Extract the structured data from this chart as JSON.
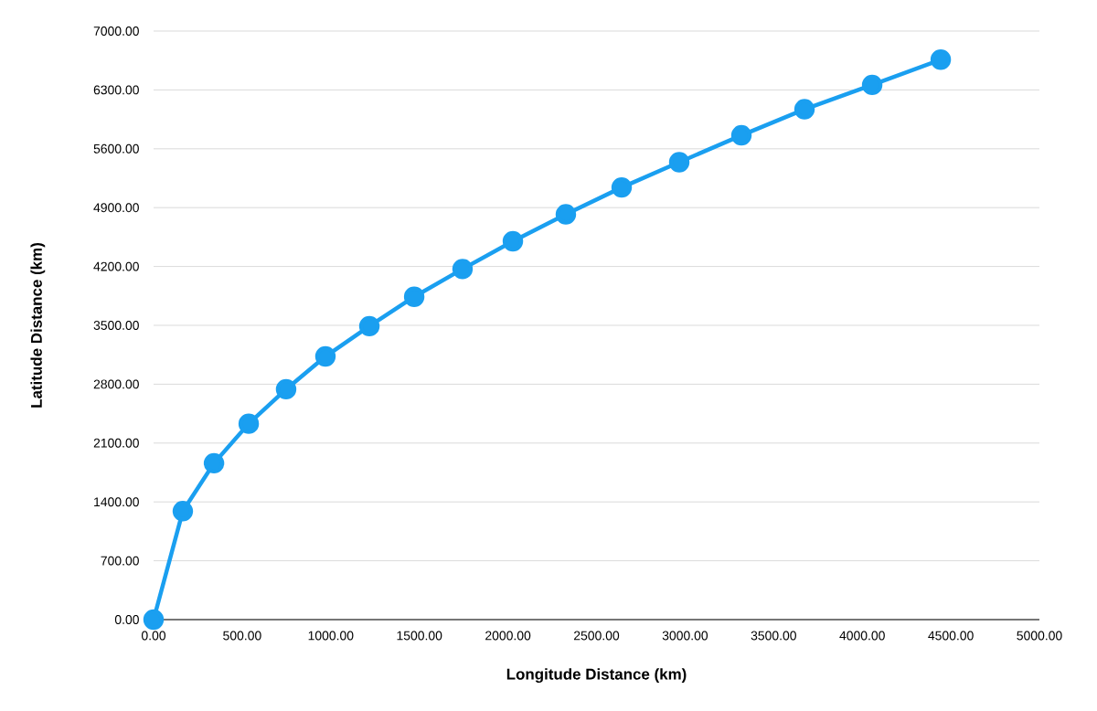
{
  "chart_data": {
    "type": "line",
    "xlabel": "Longitude Distance (km)",
    "ylabel": "Latitude Distance (km)",
    "x": [
      0,
      165,
      341,
      537,
      748,
      970,
      1218,
      1471,
      1744,
      2028,
      2327,
      2642,
      2967,
      3318,
      3674,
      4056,
      4443
    ],
    "series": [
      {
        "color": "#1a9ff0",
        "values": [
          0,
          1290,
          1860,
          2330,
          2740,
          3130,
          3490,
          3840,
          4170,
          4500,
          4820,
          5140,
          5440,
          5760,
          6070,
          6360,
          6660
        ]
      }
    ],
    "xlim": [
      0,
      5000
    ],
    "ylim": [
      0,
      7000
    ],
    "xticks": [
      {
        "value": 0,
        "label": "0.00"
      },
      {
        "value": 500,
        "label": "500.00"
      },
      {
        "value": 1000,
        "label": "1000.00"
      },
      {
        "value": 1500,
        "label": "1500.00"
      },
      {
        "value": 2000,
        "label": "2000.00"
      },
      {
        "value": 2500,
        "label": "2500.00"
      },
      {
        "value": 3000,
        "label": "3000.00"
      },
      {
        "value": 3500,
        "label": "3500.00"
      },
      {
        "value": 4000,
        "label": "4000.00"
      },
      {
        "value": 4500,
        "label": "4500.00"
      },
      {
        "value": 5000,
        "label": "5000.00"
      }
    ],
    "yticks": [
      {
        "value": 0,
        "label": "0.00"
      },
      {
        "value": 700,
        "label": "700.00"
      },
      {
        "value": 1400,
        "label": "1400.00"
      },
      {
        "value": 2100,
        "label": "2100.00"
      },
      {
        "value": 2800,
        "label": "2800.00"
      },
      {
        "value": 3500,
        "label": "3500.00"
      },
      {
        "value": 4200,
        "label": "4200.00"
      },
      {
        "value": 4900,
        "label": "4900.00"
      },
      {
        "value": 5600,
        "label": "5600.00"
      },
      {
        "value": 6300,
        "label": "6300.00"
      },
      {
        "value": 7000,
        "label": "7000.00"
      }
    ],
    "grid": "y",
    "marker": "circle",
    "line_style": "solid"
  }
}
